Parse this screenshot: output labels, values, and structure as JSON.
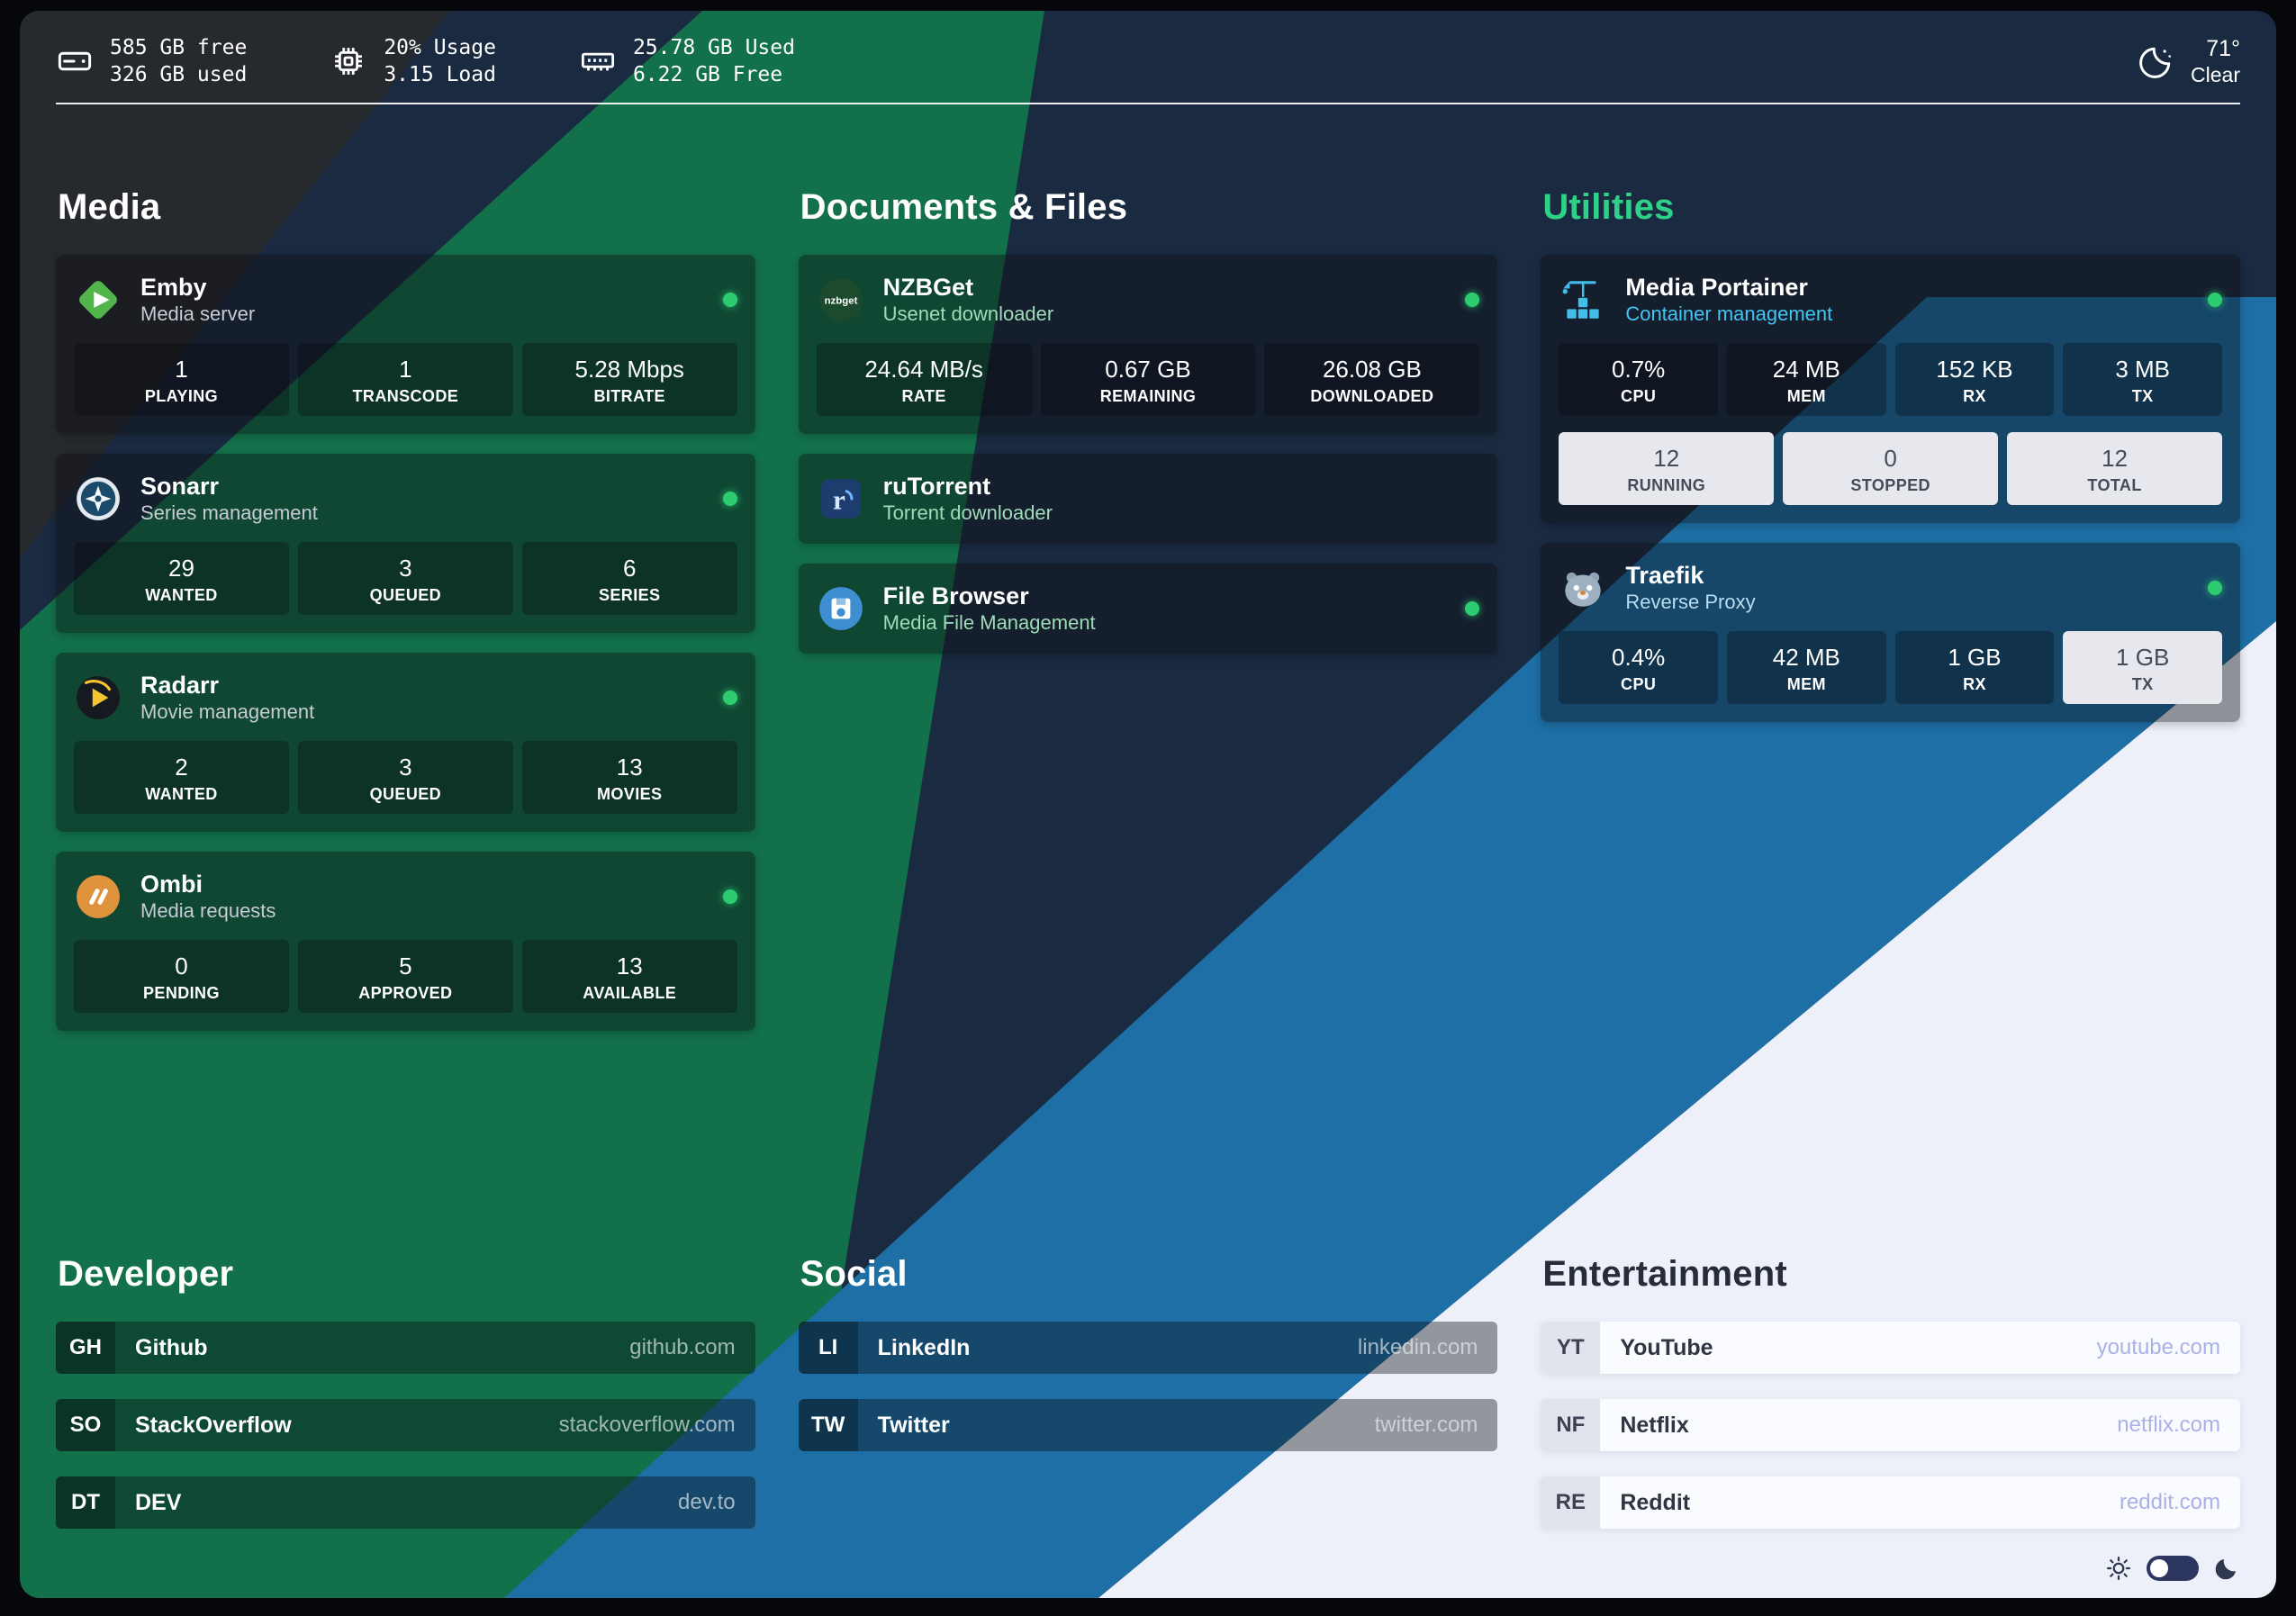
{
  "theme": {
    "background_bands": {
      "charcoal": "#26292e",
      "navy": "#1a2a40",
      "green": "#12714a",
      "blue": "#1e6fa5",
      "white": "#edf0f8"
    },
    "status_dot_color": "#2ecc71",
    "url_link_color_light": "#a9b1e6"
  },
  "system_bar": {
    "stats": [
      {
        "name": "disk-stat",
        "icon": "disk-icon",
        "lines": [
          "585 GB free",
          "326 GB used"
        ]
      },
      {
        "name": "cpu-stat",
        "icon": "cpu-icon",
        "lines": [
          "20% Usage",
          "3.15 Load"
        ]
      },
      {
        "name": "memory-stat",
        "icon": "memory-icon",
        "lines": [
          "25.78 GB Used",
          "6.22 GB Free"
        ]
      }
    ],
    "weather": {
      "icon": "moon-icon",
      "temp": "71°",
      "condition": "Clear"
    }
  },
  "sections": [
    {
      "id": "media",
      "type": "apps",
      "title": "Media",
      "title_color": "#ffffff",
      "apps": [
        {
          "name": "Emby",
          "subtitle": "Media server",
          "subtitle_color": "#c7cbd3",
          "icon": "emby-icon",
          "online": true,
          "stat_rows": [
            [
              {
                "value": "1",
                "label": "PLAYING",
                "variant": "dark"
              },
              {
                "value": "1",
                "label": "TRANSCODE",
                "variant": "dark"
              },
              {
                "value": "5.28 Mbps",
                "label": "BITRATE",
                "variant": "dark"
              }
            ]
          ]
        },
        {
          "name": "Sonarr",
          "subtitle": "Series management",
          "subtitle_color": "#c7cbd3",
          "icon": "sonarr-icon",
          "online": true,
          "stat_rows": [
            [
              {
                "value": "29",
                "label": "WANTED",
                "variant": "dark"
              },
              {
                "value": "3",
                "label": "QUEUED",
                "variant": "dark"
              },
              {
                "value": "6",
                "label": "SERIES",
                "variant": "dark"
              }
            ]
          ]
        },
        {
          "name": "Radarr",
          "subtitle": "Movie management",
          "subtitle_color": "#c7cbd3",
          "icon": "radarr-icon",
          "online": true,
          "stat_rows": [
            [
              {
                "value": "2",
                "label": "WANTED",
                "variant": "dark"
              },
              {
                "value": "3",
                "label": "QUEUED",
                "variant": "dark"
              },
              {
                "value": "13",
                "label": "MOVIES",
                "variant": "dark"
              }
            ]
          ]
        },
        {
          "name": "Ombi",
          "subtitle": "Media requests",
          "subtitle_color": "#c7cbd3",
          "icon": "ombi-icon",
          "online": true,
          "stat_rows": [
            [
              {
                "value": "0",
                "label": "PENDING",
                "variant": "dark"
              },
              {
                "value": "5",
                "label": "APPROVED",
                "variant": "dark"
              },
              {
                "value": "13",
                "label": "AVAILABLE",
                "variant": "dark"
              }
            ]
          ]
        }
      ]
    },
    {
      "id": "documents",
      "type": "apps",
      "title": "Documents & Files",
      "title_color": "#ffffff",
      "apps": [
        {
          "name": "NZBGet",
          "subtitle": "Usenet downloader",
          "subtitle_color": "#9edcb8",
          "icon": "nzbget-icon",
          "online": true,
          "stat_rows": [
            [
              {
                "value": "24.64 MB/s",
                "label": "RATE",
                "variant": "dark"
              },
              {
                "value": "0.67 GB",
                "label": "REMAINING",
                "variant": "dark"
              },
              {
                "value": "26.08 GB",
                "label": "DOWNLOADED",
                "variant": "dark"
              }
            ]
          ]
        },
        {
          "name": "ruTorrent",
          "subtitle": "Torrent downloader",
          "subtitle_color": "#9edcb8",
          "icon": "rutorrent-icon",
          "online": false,
          "stat_rows": []
        },
        {
          "name": "File Browser",
          "subtitle": "Media File Management",
          "subtitle_color": "#9edcb8",
          "icon": "filebrowser-icon",
          "online": true,
          "stat_rows": []
        }
      ]
    },
    {
      "id": "utilities",
      "type": "apps",
      "title": "Utilities",
      "title_color": "#2fd189",
      "apps": [
        {
          "name": "Media Portainer",
          "subtitle": "Container management",
          "subtitle_color": "#41c6f3",
          "icon": "portainer-icon",
          "online": true,
          "stat_rows": [
            [
              {
                "value": "0.7%",
                "label": "CPU",
                "variant": "dark"
              },
              {
                "value": "24 MB",
                "label": "MEM",
                "variant": "dark"
              },
              {
                "value": "152 KB",
                "label": "RX",
                "variant": "dark"
              },
              {
                "value": "3 MB",
                "label": "TX",
                "variant": "dark"
              }
            ],
            [
              {
                "value": "12",
                "label": "RUNNING",
                "variant": "light"
              },
              {
                "value": "0",
                "label": "STOPPED",
                "variant": "light"
              },
              {
                "value": "12",
                "label": "TOTAL",
                "variant": "light"
              }
            ]
          ]
        },
        {
          "name": "Traefik",
          "subtitle": "Reverse Proxy",
          "subtitle_color": "#b9ddf1",
          "icon": "traefik-icon",
          "online": true,
          "stat_rows": [
            [
              {
                "value": "0.4%",
                "label": "CPU",
                "variant": "dark"
              },
              {
                "value": "42 MB",
                "label": "MEM",
                "variant": "dark"
              },
              {
                "value": "1 GB",
                "label": "RX",
                "variant": "dark"
              },
              {
                "value": "1 GB",
                "label": "TX",
                "variant": "light"
              }
            ]
          ]
        }
      ]
    },
    {
      "id": "developer",
      "type": "bookmarks",
      "theme": "dark",
      "title": "Developer",
      "title_color": "#ffffff",
      "bookmarks": [
        {
          "abbr": "GH",
          "name": "Github",
          "url": "github.com"
        },
        {
          "abbr": "SO",
          "name": "StackOverflow",
          "url": "stackoverflow.com"
        },
        {
          "abbr": "DT",
          "name": "DEV",
          "url": "dev.to"
        }
      ]
    },
    {
      "id": "social",
      "type": "bookmarks",
      "theme": "dark",
      "title": "Social",
      "title_color": "#ffffff",
      "bookmarks": [
        {
          "abbr": "LI",
          "name": "LinkedIn",
          "url": "linkedin.com"
        },
        {
          "abbr": "TW",
          "name": "Twitter",
          "url": "twitter.com"
        }
      ]
    },
    {
      "id": "entertainment",
      "type": "bookmarks",
      "theme": "light",
      "title": "Entertainment",
      "title_color": "#262c3a",
      "bookmarks": [
        {
          "abbr": "YT",
          "name": "YouTube",
          "url": "youtube.com"
        },
        {
          "abbr": "NF",
          "name": "Netflix",
          "url": "netflix.com"
        },
        {
          "abbr": "RE",
          "name": "Reddit",
          "url": "reddit.com"
        }
      ]
    }
  ],
  "theme_toggle": {
    "light_icon": "sun-icon",
    "dark_icon": "moon-dark-icon"
  }
}
